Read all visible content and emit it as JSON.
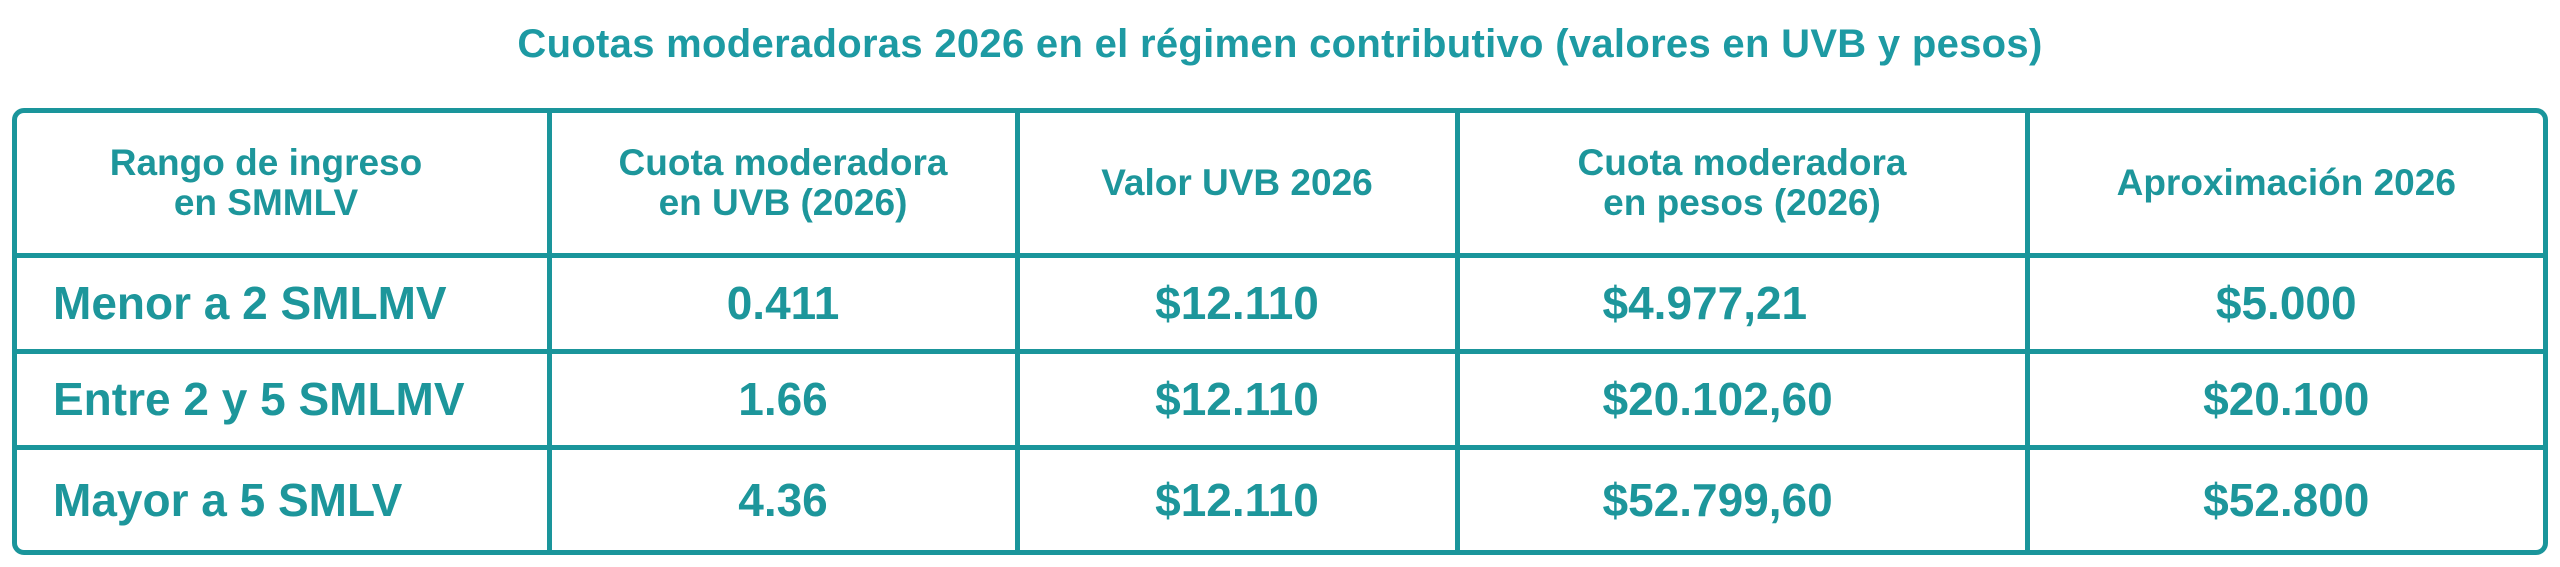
{
  "title": "Cuotas moderadoras 2026 en el régimen contributivo (valores en UVB y pesos)",
  "table": {
    "headers": [
      {
        "line1": "Rango de ingreso",
        "line2": "en SMMLV"
      },
      {
        "line1": "Cuota moderadora",
        "line2": "en UVB (2026)"
      },
      {
        "line1": "Valor UVB 2026",
        "line2": ""
      },
      {
        "line1": "Cuota moderadora",
        "line2": "en pesos (2026)"
      },
      {
        "line1": "Aproximación 2026",
        "line2": ""
      }
    ],
    "rows": [
      {
        "range": "Menor a 2 SMLMV",
        "uvb": "0.411",
        "valor_uvb": "$12.110",
        "pesos": "$4.977,21",
        "aprox": "$5.000"
      },
      {
        "range": "Entre 2 y 5 SMLMV",
        "uvb": "1.66",
        "valor_uvb": "$12.110",
        "pesos": "$20.102,60",
        "aprox": "$20.100"
      },
      {
        "range": "Mayor a 5 SMLV",
        "uvb": "4.36",
        "valor_uvb": "$12.110",
        "pesos": "$52.799,60",
        "aprox": "$52.800"
      }
    ]
  },
  "colors": {
    "text": "#1d969b",
    "border": "#1a959b",
    "background": "#ffffff"
  }
}
